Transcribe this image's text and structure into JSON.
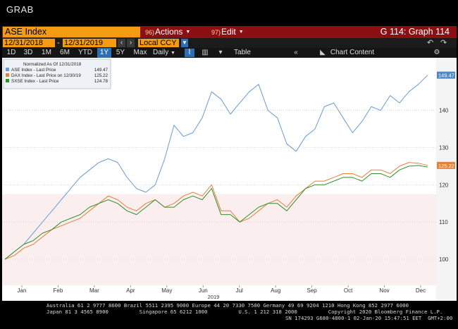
{
  "header": {
    "title": "GRAB"
  },
  "toolbar": {
    "security": "ASE Index",
    "actions": {
      "num": "96)",
      "label": "Actions"
    },
    "edit": {
      "num": "97)",
      "label": "Edit"
    },
    "graph": "G 114: Graph 114"
  },
  "dates": {
    "start": "12/31/2018",
    "end": "12/31/2019",
    "currency": "Local CCY"
  },
  "periods": [
    "1D",
    "3D",
    "1M",
    "6M",
    "YTD",
    "1Y",
    "5Y",
    "Max"
  ],
  "active_period": "1Y",
  "frequency": "Daily",
  "table_label": "Table",
  "chart_content_label": "Chart Content",
  "chart_data": {
    "type": "line",
    "legend": {
      "title": "Normalized As Of 12/31/2018",
      "entries": [
        {
          "name": "ASE Index - Last Price",
          "value": "149.47",
          "color": "#6a9ccf"
        },
        {
          "name": "DAX Index - Last Price on 12/30/19",
          "value": "125.22",
          "color": "#e2823a"
        },
        {
          "name": "SXSE Index - Last Price",
          "value": "124.78",
          "color": "#2f8f2f"
        }
      ]
    },
    "xlabel": "2019",
    "x_ticks": [
      "Jan",
      "Feb",
      "Mar",
      "Apr",
      "May",
      "Jun",
      "Jul",
      "Aug",
      "Sep",
      "Oct",
      "Nov",
      "Dec"
    ],
    "y_ticks": [
      100,
      110,
      120,
      130,
      140
    ],
    "ylim": [
      93,
      153
    ],
    "reference_level": 117.5,
    "last_labels": {
      "ASE": "149.47",
      "DAX": "125.22"
    },
    "series": [
      {
        "name": "ASE Index - Last Price",
        "color": "#6a9ccf",
        "values": [
          100,
          102,
          104,
          107,
          110,
          113,
          116,
          119,
          122,
          124,
          126,
          127,
          126,
          122,
          119,
          118,
          120,
          127,
          136,
          133,
          134,
          138,
          145,
          143,
          139,
          142,
          145,
          147,
          140,
          138,
          131,
          129,
          133,
          135,
          141,
          142,
          138,
          134,
          137,
          141,
          140,
          144,
          142,
          145,
          147,
          149.47
        ]
      },
      {
        "name": "DAX Index - Last Price on 12/30/19",
        "color": "#e2823a",
        "values": [
          100,
          101,
          103,
          104,
          106,
          108,
          109,
          110,
          111,
          113,
          115,
          117,
          116,
          114,
          113,
          115,
          116,
          114,
          115,
          117,
          118,
          117,
          120,
          113,
          113,
          110,
          111,
          113,
          115,
          116,
          114,
          117,
          119,
          121,
          121,
          122,
          123,
          123,
          122,
          124,
          124,
          123,
          125,
          126,
          125.8,
          125.22
        ]
      },
      {
        "name": "SXSE Index - Last Price",
        "color": "#2f8f2f",
        "values": [
          100,
          102,
          104,
          105,
          107,
          108,
          110,
          111,
          112,
          114,
          115,
          116,
          115,
          113,
          112,
          114,
          116,
          114,
          114,
          116,
          117,
          116,
          119,
          112,
          112,
          110,
          112,
          114,
          115,
          115,
          113,
          116,
          119,
          120,
          120,
          121,
          122,
          122,
          121,
          123,
          123,
          122,
          124,
          125,
          125.2,
          124.78
        ]
      }
    ]
  },
  "footer": {
    "line1": "Australia 61 2 9777 8600 Brazil 5511 2395 9000 Europe 44 20 7330 7500 Germany 49 69 9204 1210 Hong Kong 852 2977 6000",
    "line2": "Japan 81 3 4565 8900          Singapore 65 6212 1000          U.S. 1 212 318 2000          Copyright 2020 Bloomberg Finance L.P.",
    "line3": "SN 174293 G680-4800-1 02-Jan-20 15:47:51 EET  GMT+2:00"
  }
}
